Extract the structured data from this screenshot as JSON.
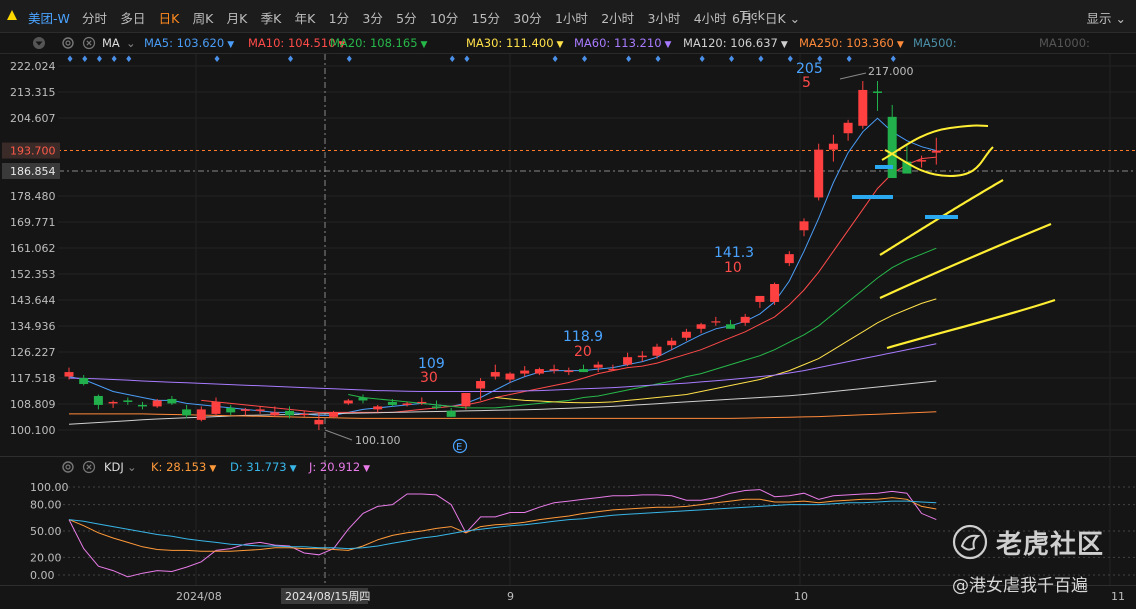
{
  "header": {
    "symbol": "美团-W",
    "tabs": [
      "分时",
      "多日",
      "日K",
      "周K",
      "月K",
      "季K",
      "年K",
      "1分",
      "3分",
      "5分",
      "10分",
      "15分",
      "30分",
      "1小时",
      "2小时",
      "3小时",
      "4小时",
      "Tick"
    ],
    "active_tab": "日K",
    "period_label": "6月：日K",
    "display_label": "显示"
  },
  "ma_legend": {
    "title": "MA",
    "items": [
      {
        "label": "MA5: 103.620",
        "color": "#4a9df7"
      },
      {
        "label": "MA10: 104.510",
        "color": "#ff4a4a"
      },
      {
        "label": "MA20: 108.165",
        "color": "#27b84a"
      },
      {
        "label": "MA30: 111.400",
        "color": "#ffe14a"
      },
      {
        "label": "MA60: 113.210",
        "color": "#a77bff"
      },
      {
        "label": "MA120: 106.637",
        "color": "#d0d0d0"
      },
      {
        "label": "MA250: 103.360",
        "color": "#ff8a3a"
      },
      {
        "label": "MA500:",
        "color": "#4a8fa8"
      },
      {
        "label": "MA1000:",
        "color": "#555555"
      }
    ]
  },
  "price_axis": [
    "222.024",
    "213.315",
    "204.607",
    "193.700",
    "186.854",
    "178.480",
    "169.771",
    "161.062",
    "152.353",
    "143.644",
    "134.936",
    "126.227",
    "117.518",
    "108.809",
    "100.100"
  ],
  "current_price_tag": "193.700",
  "crosshair_price_tag": "186.854",
  "annotations": {
    "high_label": "217.000",
    "low_label": "100.100",
    "a1_top": "109",
    "a1_bottom": "30",
    "a2_top": "118.9",
    "a2_bottom": "20",
    "a3_top": "141.3",
    "a3_bottom": "10",
    "a4_top": "205",
    "a4_bottom": "5",
    "event_marker": "E"
  },
  "kdj_legend": {
    "title": "KDJ",
    "items": [
      {
        "label": "K: 28.153",
        "color": "#ff9a3a"
      },
      {
        "label": "D: 31.773",
        "color": "#38b6e8"
      },
      {
        "label": "J: 20.912",
        "color": "#e87be8"
      }
    ]
  },
  "kdj_axis": [
    "100.00",
    "80.00",
    "50.00",
    "20.00",
    "0.00"
  ],
  "date_axis": {
    "labels": [
      "2024/08",
      "9",
      "10",
      "11"
    ],
    "crosshair_date": "2024/08/15周四"
  },
  "watermark": {
    "title": "老虎社区",
    "subtitle": "@港女虐我千百遍"
  },
  "chart_data": {
    "type": "candlestick",
    "candles_ohlc": [
      [
        118.0,
        121.0,
        117.0,
        119.5
      ],
      [
        117.5,
        118.5,
        115.0,
        115.5
      ],
      [
        111.5,
        112.0,
        107.0,
        108.5
      ],
      [
        109.0,
        110.0,
        107.5,
        109.5
      ],
      [
        110.0,
        111.0,
        108.5,
        109.5
      ],
      [
        108.5,
        109.5,
        107.0,
        108.0
      ],
      [
        108.0,
        110.5,
        107.5,
        110.0
      ],
      [
        110.5,
        111.5,
        108.5,
        109.0
      ],
      [
        107.0,
        108.5,
        104.0,
        105.0
      ],
      [
        103.5,
        108.0,
        103.0,
        107.0
      ],
      [
        105.5,
        111.0,
        105.0,
        109.5
      ],
      [
        107.5,
        108.5,
        105.0,
        106.0
      ],
      [
        106.5,
        107.5,
        105.0,
        107.0
      ],
      [
        106.5,
        108.0,
        105.5,
        107.0
      ],
      [
        105.0,
        108.0,
        104.5,
        106.0
      ],
      [
        106.5,
        108.0,
        104.0,
        105.0
      ],
      [
        105.5,
        106.5,
        104.5,
        105.5
      ],
      [
        102.0,
        106.0,
        100.1,
        103.5
      ],
      [
        104.5,
        106.5,
        104.0,
        106.0
      ],
      [
        109.0,
        110.5,
        108.5,
        110.0
      ],
      [
        111.0,
        112.0,
        109.0,
        110.0
      ],
      [
        107.0,
        108.5,
        106.0,
        108.0
      ],
      [
        109.5,
        110.5,
        108.0,
        108.5
      ],
      [
        108.5,
        109.5,
        108.0,
        109.0
      ],
      [
        109.5,
        111.0,
        108.5,
        109.5
      ],
      [
        108.0,
        110.0,
        107.0,
        107.5
      ],
      [
        106.5,
        107.5,
        104.5,
        104.5
      ],
      [
        108.0,
        112.0,
        107.0,
        112.5
      ],
      [
        114.0,
        117.5,
        110.0,
        116.5
      ],
      [
        118.0,
        122.0,
        117.0,
        119.5
      ],
      [
        117.0,
        119.5,
        116.0,
        119.0
      ],
      [
        119.0,
        121.5,
        118.0,
        120.0
      ],
      [
        119.0,
        121.0,
        118.5,
        120.5
      ],
      [
        120.0,
        122.0,
        119.0,
        120.5
      ],
      [
        119.5,
        121.0,
        118.5,
        120.0
      ],
      [
        120.5,
        122.0,
        120.0,
        119.5
      ],
      [
        121.0,
        123.0,
        119.5,
        122.0
      ],
      [
        120.5,
        122.0,
        120.0,
        120.5
      ],
      [
        122.0,
        126.0,
        121.5,
        124.5
      ],
      [
        124.5,
        126.5,
        123.0,
        125.0
      ],
      [
        125.0,
        129.0,
        124.0,
        128.0
      ],
      [
        128.5,
        131.0,
        127.0,
        130.0
      ],
      [
        131.0,
        134.0,
        130.0,
        133.0
      ],
      [
        134.0,
        136.0,
        132.5,
        135.5
      ],
      [
        136.5,
        138.0,
        135.0,
        136.5
      ],
      [
        135.5,
        137.0,
        134.0,
        134.0
      ],
      [
        136.0,
        139.0,
        135.0,
        138.0
      ],
      [
        143.0,
        145.0,
        141.0,
        145.0
      ],
      [
        143.0,
        149.5,
        142.0,
        149.0
      ],
      [
        156.0,
        160.0,
        155.0,
        159.0
      ],
      [
        167.0,
        171.0,
        165.0,
        170.0
      ],
      [
        178.0,
        196.0,
        177.0,
        194.0
      ],
      [
        194.0,
        199.0,
        190.0,
        196.0
      ],
      [
        199.5,
        204.0,
        197.0,
        203.0
      ],
      [
        202.0,
        217.0,
        201.0,
        214.0
      ],
      [
        213.5,
        217.0,
        207.0,
        213.0
      ],
      [
        205.0,
        209.0,
        184.5,
        184.5
      ],
      [
        190.0,
        196.0,
        188.0,
        186.0
      ],
      [
        190.0,
        192.0,
        188.0,
        190.5
      ],
      [
        193.0,
        198.0,
        189.0,
        193.7
      ]
    ],
    "ma_lines": {
      "MA5": [
        118,
        117,
        115,
        113,
        112,
        111,
        110,
        110,
        109,
        108.5,
        108,
        107.5,
        107,
        106.5,
        106,
        106,
        105.5,
        105,
        105,
        106,
        107,
        107.5,
        108,
        108.5,
        109,
        108.5,
        108,
        109,
        111,
        113.5,
        116,
        118,
        119.5,
        120,
        120,
        120,
        120.5,
        121,
        122,
        123,
        124.5,
        127,
        129.5,
        132,
        134,
        135,
        136.5,
        139,
        143,
        150,
        160,
        171,
        183,
        193,
        200,
        204.5,
        200,
        197,
        195,
        193.7
      ],
      "MA10": [
        null,
        null,
        null,
        null,
        null,
        null,
        null,
        null,
        null,
        110,
        109.5,
        109,
        108.5,
        108,
        107.5,
        107,
        106.5,
        106,
        106,
        106,
        106,
        106,
        106,
        106.5,
        107,
        107.5,
        108,
        108.5,
        109.5,
        111,
        112,
        113,
        114,
        115,
        116,
        117.5,
        119,
        120,
        121,
        121.5,
        122.5,
        124,
        125.5,
        127,
        129,
        131,
        133,
        135.5,
        138,
        142,
        147,
        153,
        160,
        167,
        174,
        181,
        186,
        189,
        191,
        191.5
      ],
      "MA20": [
        null,
        null,
        null,
        null,
        null,
        null,
        null,
        null,
        null,
        null,
        null,
        null,
        null,
        null,
        null,
        null,
        null,
        null,
        null,
        112,
        111,
        110.5,
        110,
        109.5,
        109,
        108.5,
        108,
        107.5,
        107.5,
        107.5,
        108,
        108.5,
        109,
        109.5,
        110,
        111,
        111.5,
        112.5,
        113.5,
        114.5,
        115.5,
        116.5,
        118,
        119,
        120.5,
        122,
        123.5,
        125,
        127,
        129.5,
        132,
        135,
        139,
        143,
        147,
        151,
        154.5,
        157,
        159,
        161
      ],
      "MA30": [
        null,
        null,
        null,
        null,
        null,
        null,
        null,
        null,
        null,
        null,
        null,
        null,
        null,
        null,
        null,
        null,
        null,
        null,
        null,
        null,
        null,
        null,
        null,
        null,
        null,
        null,
        null,
        null,
        null,
        111,
        110.5,
        110,
        109.8,
        109.5,
        109.3,
        109.2,
        109.3,
        109.5,
        110,
        110.5,
        111,
        111.5,
        112,
        113,
        114,
        115,
        116,
        117,
        118.5,
        120,
        122,
        124,
        127,
        130,
        133,
        136,
        138.5,
        140.5,
        142.5,
        144
      ],
      "MA60": [
        117.5,
        117.4,
        117.2,
        117,
        116.8,
        116.5,
        116.3,
        116.1,
        115.9,
        115.7,
        115.5,
        115.3,
        115.1,
        114.9,
        114.7,
        114.5,
        114.3,
        114.1,
        113.9,
        113.7,
        113.5,
        113.3,
        113.2,
        113.1,
        113,
        113,
        113,
        113,
        113,
        113,
        113.1,
        113.2,
        113.3,
        113.5,
        113.7,
        113.9,
        114.1,
        114.3,
        114.6,
        114.9,
        115.2,
        115.5,
        115.8,
        116.2,
        116.6,
        117,
        117.5,
        118,
        118.5,
        119.2,
        120,
        121,
        122,
        123,
        124,
        125,
        126,
        127,
        128,
        129
      ],
      "MA120": [
        102,
        102.3,
        102.6,
        102.9,
        103.2,
        103.5,
        103.8,
        104,
        104.2,
        104.4,
        104.6,
        104.8,
        105,
        105.1,
        105.2,
        105.3,
        105.4,
        105.5,
        105.6,
        105.7,
        105.8,
        105.9,
        106,
        106.1,
        106.2,
        106.3,
        106.4,
        106.5,
        106.6,
        106.7,
        106.8,
        106.9,
        107,
        107.2,
        107.4,
        107.6,
        107.8,
        108,
        108.3,
        108.6,
        108.9,
        109.2,
        109.5,
        109.8,
        110.1,
        110.4,
        110.7,
        111,
        111.3,
        111.6,
        112,
        112.5,
        113,
        113.5,
        114,
        114.5,
        115,
        115.5,
        116,
        116.5
      ],
      "MA250": [
        105.5,
        105.5,
        105.5,
        105.5,
        105.5,
        105.5,
        105.4,
        105.3,
        105.2,
        105.1,
        105,
        104.9,
        104.8,
        104.7,
        104.6,
        104.5,
        104.4,
        104.3,
        104.2,
        104.1,
        104,
        104,
        104,
        104,
        104,
        104,
        104,
        104,
        104,
        104,
        104,
        104,
        104,
        104,
        104,
        104,
        104,
        104,
        104,
        104,
        104,
        104,
        104,
        104,
        104,
        104,
        104.1,
        104.2,
        104.3,
        104.4,
        104.5,
        104.6,
        104.8,
        105,
        105.2,
        105.4,
        105.6,
        105.8,
        106,
        106.2
      ]
    },
    "kdj": {
      "K": [
        63,
        56,
        48,
        42,
        37,
        32,
        29,
        28,
        28,
        27,
        27,
        27,
        28,
        29,
        31,
        31,
        30,
        30,
        29,
        28,
        33,
        40,
        45,
        48,
        50,
        53,
        55,
        48,
        55,
        57,
        58,
        60,
        63,
        65,
        67,
        70,
        72,
        74,
        75,
        76,
        77,
        77,
        78,
        80,
        82,
        84,
        86,
        86,
        83,
        83,
        84,
        82,
        84,
        85,
        86,
        86,
        88,
        86,
        78,
        75
      ],
      "D": [
        63,
        61,
        58,
        55,
        52,
        49,
        46,
        44,
        41,
        39,
        37,
        35,
        34,
        33,
        33,
        32,
        32,
        31,
        31,
        30,
        31,
        33,
        36,
        39,
        42,
        44,
        47,
        50,
        52,
        54,
        56,
        57,
        59,
        61,
        63,
        64,
        66,
        68,
        69,
        70,
        71,
        72,
        73,
        74,
        75,
        76,
        77,
        78,
        79,
        80,
        80,
        80,
        81,
        82,
        82,
        83,
        84,
        84,
        83,
        82
      ],
      "J": [
        63,
        30,
        10,
        5,
        -2,
        2,
        5,
        4,
        9,
        15,
        28,
        30,
        35,
        37,
        34,
        33,
        25,
        23,
        30,
        52,
        70,
        78,
        80,
        92,
        92,
        91,
        80,
        48,
        66,
        66,
        71,
        71,
        77,
        82,
        84,
        86,
        88,
        90,
        90,
        91,
        91,
        90,
        85,
        85,
        88,
        93,
        96,
        97,
        89,
        90,
        93,
        86,
        90,
        91,
        92,
        93,
        95,
        93,
        70,
        63
      ]
    },
    "price_range": [
      100.1,
      222.024
    ],
    "kdj_range": [
      -5,
      105
    ]
  }
}
